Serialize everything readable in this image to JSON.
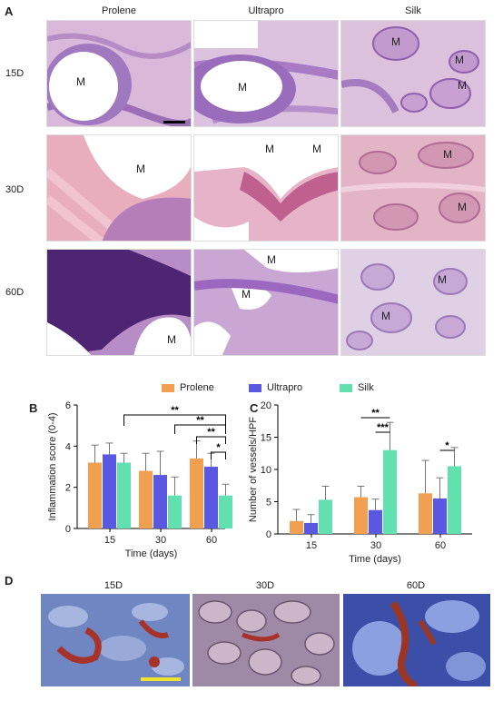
{
  "panel_labels": {
    "a": "A",
    "b": "B",
    "c": "C",
    "d": "D"
  },
  "panelA": {
    "columns": [
      "Prolene",
      "Ultrapro",
      "Silk"
    ],
    "rows": [
      "15D",
      "30D",
      "60D"
    ],
    "mesh_label": "M",
    "colors": {
      "tissue": "#d5a6cf",
      "mesh": "#ffffff",
      "stain_dark": "#5b2a78",
      "stain_pink": "#e7a7b7"
    }
  },
  "legend": [
    {
      "label": "Prolene",
      "color": "#f0a050"
    },
    {
      "label": "Ultrapro",
      "color": "#5a58e0"
    },
    {
      "label": "Silk",
      "color": "#62e0b0"
    }
  ],
  "chart_data": [
    {
      "type": "bar",
      "panel": "B",
      "categories": [
        "15",
        "30",
        "60"
      ],
      "xlabel": "Time (days)",
      "ylabel": "Inflammation score (0-4)",
      "ylim": [
        0,
        6
      ],
      "yticks": [
        "0",
        "2",
        "4",
        "6"
      ],
      "series": [
        {
          "name": "Prolene",
          "values": [
            3.2,
            2.8,
            3.4
          ],
          "errors": [
            0.85,
            0.85,
            0.85
          ]
        },
        {
          "name": "Ultrapro",
          "values": [
            3.6,
            2.6,
            3.0
          ],
          "errors": [
            0.55,
            1.15,
            0.65
          ]
        },
        {
          "name": "Silk",
          "values": [
            3.2,
            1.6,
            1.6
          ],
          "errors": [
            0.45,
            0.9,
            0.55
          ]
        }
      ],
      "significance": [
        "**",
        "**",
        "**",
        "*"
      ]
    },
    {
      "type": "bar",
      "panel": "C",
      "categories": [
        "15",
        "30",
        "60"
      ],
      "xlabel": "Time (days)",
      "ylabel": "Number of vessels/HPF",
      "ylim": [
        0,
        20
      ],
      "yticks": [
        "0",
        "5",
        "10",
        "15",
        "20"
      ],
      "series": [
        {
          "name": "Prolene",
          "values": [
            2.0,
            5.7,
            6.3
          ],
          "errors": [
            1.8,
            1.7,
            5.1
          ]
        },
        {
          "name": "Ultrapro",
          "values": [
            1.7,
            3.7,
            5.5
          ],
          "errors": [
            1.3,
            1.7,
            3.2
          ]
        },
        {
          "name": "Silk",
          "values": [
            5.3,
            13.0,
            10.5
          ],
          "errors": [
            2.1,
            4.3,
            2.9
          ]
        }
      ],
      "significance": [
        "**",
        "***",
        "*"
      ]
    }
  ],
  "panelD": {
    "columns": [
      "15D",
      "30D",
      "60D"
    ]
  }
}
